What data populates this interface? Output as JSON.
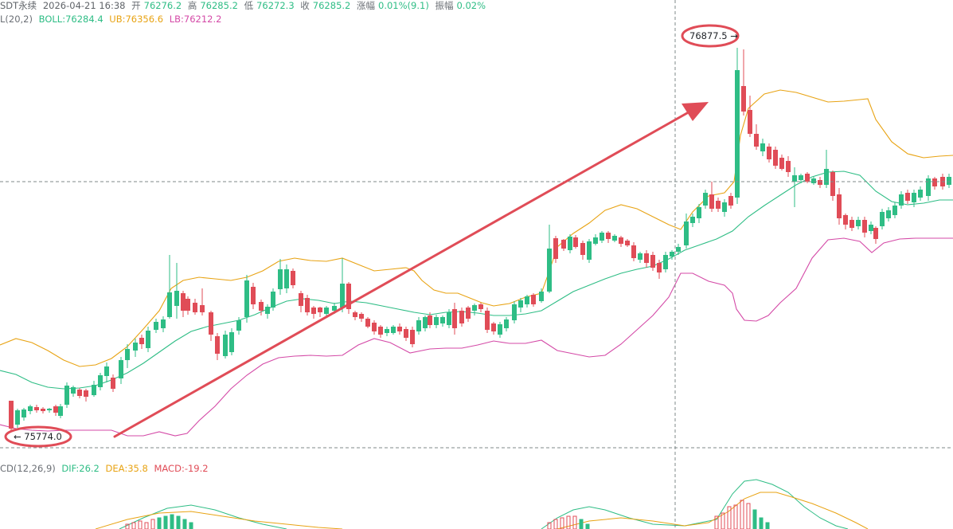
{
  "header": {
    "symbol": "SDT永续",
    "datetime": "2026-04-21 16:38",
    "open_label": "开",
    "open_value": "76276.2",
    "high_label": "高",
    "high_value": "76285.2",
    "low_label": "低",
    "low_value": "76272.3",
    "close_label": "收",
    "close_value": "76285.2",
    "change_label": "涨幅",
    "change_value": "0.01%(9.1)",
    "amplitude_label": "振幅",
    "amplitude_value": "0.02%"
  },
  "boll_indicator": {
    "name": "L(20,2)",
    "boll": "BOLL:76284.4",
    "ub": "UB:76356.6",
    "lb": "LB:76212.2"
  },
  "macd_indicator": {
    "name": "CD(12,26,9)",
    "dif": "DIF:26.2",
    "dea": "DEA:35.8",
    "macd": "MACD:-19.2"
  },
  "annotations": {
    "low_marker": "75774.0",
    "high_marker": "76877.5",
    "low_arrow": "←",
    "high_arrow": "→"
  },
  "colors": {
    "up": "#2ebd85",
    "down": "#e04c57",
    "boll_mid": "#2ebd85",
    "upper_band": "#e8a313",
    "lower_band": "#d44aa7",
    "annotation": "#e04c57",
    "crosshair": "#7f8a8a"
  }
}
